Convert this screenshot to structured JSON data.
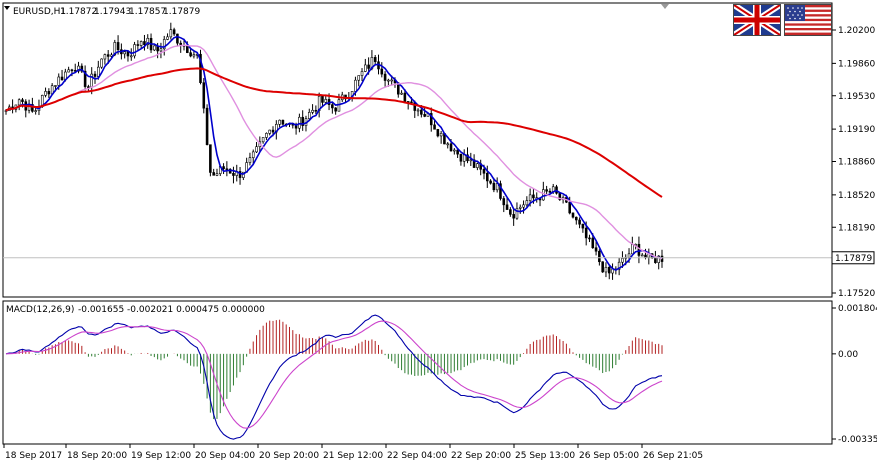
{
  "header": {
    "symbol": "EURUSD,H1",
    "open": "1.17872",
    "high": "1.17943",
    "low": "1.17857",
    "close": "1.17879"
  },
  "macd_header": {
    "name": "MACD(12,26,9)",
    "values": "-0.001655 -0.002021 0.000475 0.000000"
  },
  "flags": {
    "left": "uk-flag-icon",
    "right": "us-flag-icon"
  },
  "price_axis": {
    "labels": [
      "1.20200",
      "1.19860",
      "1.19530",
      "1.19190",
      "1.18860",
      "1.18520",
      "1.18190",
      "1.17520"
    ],
    "current_price": "1.17879"
  },
  "macd_axis": {
    "labels": [
      "0.001804",
      "0.00",
      "-0.003351"
    ]
  },
  "time_axis": {
    "labels": [
      "18 Sep 2017",
      "18 Sep 20:00",
      "19 Sep 12:00",
      "20 Sep 04:00",
      "20 Sep 20:00",
      "21 Sep 12:00",
      "22 Sep 04:00",
      "22 Sep 20:00",
      "25 Sep 13:00",
      "26 Sep 05:00",
      "26 Sep 21:05"
    ]
  },
  "colors": {
    "bull_candle": "#000000",
    "bear_candle": "#000000",
    "ma_fast": "#0000cc",
    "ma_medium": "#e090e0",
    "ma_slow": "#dd0000",
    "hist_positive": "#b22222",
    "hist_negative": "#2e7d32",
    "macd_line": "#0000aa",
    "signal_line": "#cc44cc",
    "bid_line": "#c0c0c0"
  },
  "chart_data": {
    "type": "candlestick",
    "symbol": "EURUSD",
    "timeframe": "H1",
    "price_range": [
      1.1745,
      1.204
    ],
    "close_path": [
      1.1938,
      1.195,
      1.1935,
      1.1958,
      1.1972,
      1.1985,
      1.1962,
      1.199,
      1.2002,
      1.1995,
      1.2012,
      1.1997,
      1.2018,
      1.2005,
      1.1993,
      1.187,
      1.188,
      1.1872,
      1.1888,
      1.1912,
      1.193,
      1.192,
      1.1932,
      1.1948,
      1.194,
      1.1955,
      1.1975,
      1.1992,
      1.1968,
      1.1955,
      1.1942,
      1.193,
      1.191,
      1.1895,
      1.1885,
      1.1872,
      1.1858,
      1.1832,
      1.1845,
      1.1851,
      1.1856,
      1.184,
      1.1818,
      1.1795,
      1.177,
      1.1782,
      1.18,
      1.1786,
      1.1788
    ],
    "macd_range": [
      -0.003351,
      0.001804
    ]
  }
}
